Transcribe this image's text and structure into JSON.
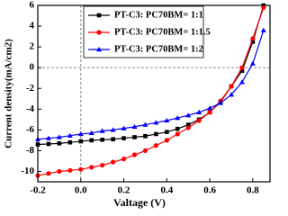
{
  "chart_data": {
    "type": "line",
    "x_label": "Valtage (V)",
    "y_label": "Current density(mA/cm2)",
    "x": [
      -0.2,
      -0.15,
      -0.1,
      -0.05,
      0,
      0.05,
      0.1,
      0.15,
      0.2,
      0.25,
      0.3,
      0.35,
      0.4,
      0.45,
      0.5,
      0.55,
      0.6,
      0.65,
      0.7,
      0.75,
      0.8,
      0.85
    ],
    "series": [
      {
        "name": "PT-C3: PC70BM= 1:1",
        "color": "#000000",
        "marker": "square",
        "values": [
          -7.4,
          -7.35,
          -7.3,
          -7.2,
          -7.1,
          -7.0,
          -6.95,
          -6.9,
          -6.8,
          -6.7,
          -6.6,
          -6.4,
          -6.2,
          -5.9,
          -5.5,
          -5.0,
          -4.3,
          -3.3,
          -1.8,
          -0.3,
          2.5,
          6.0
        ]
      },
      {
        "name": "PT-C3: PC70BM= 1:1.5",
        "color": "#ff0000",
        "marker": "circle",
        "values": [
          -10.4,
          -10.2,
          -10.0,
          -9.9,
          -9.8,
          -9.6,
          -9.4,
          -9.1,
          -8.8,
          -8.4,
          -8.0,
          -7.5,
          -7.0,
          -6.4,
          -5.8,
          -5.1,
          -4.3,
          -3.2,
          -1.8,
          0.0,
          2.8,
          5.8
        ]
      },
      {
        "name": "PT-C3: PC70BM= 1:2",
        "color": "#0000ff",
        "marker": "triangle",
        "values": [
          -6.9,
          -6.8,
          -6.7,
          -6.55,
          -6.4,
          -6.3,
          -6.1,
          -6.0,
          -5.85,
          -5.7,
          -5.5,
          -5.3,
          -5.1,
          -4.85,
          -4.6,
          -4.3,
          -3.9,
          -3.4,
          -2.6,
          -1.4,
          0.4,
          3.6
        ]
      }
    ],
    "xlim": [
      -0.2,
      0.88
    ],
    "ylim": [
      -11,
      6
    ],
    "xticks": [
      {
        "value": -0.2,
        "label": "-0.2"
      },
      {
        "value": 0,
        "label": "0.0"
      },
      {
        "value": 0.2,
        "label": "0.2"
      },
      {
        "value": 0.4,
        "label": "0.4"
      },
      {
        "value": 0.6,
        "label": "0.6"
      },
      {
        "value": 0.8,
        "label": "0.8"
      }
    ],
    "yticks": [
      -10,
      -8,
      -6,
      -4,
      -2,
      0,
      2,
      4,
      6
    ]
  }
}
